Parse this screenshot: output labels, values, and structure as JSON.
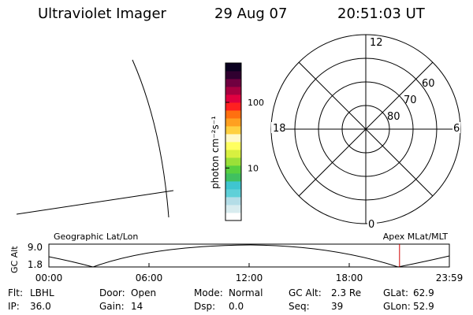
{
  "header": {
    "title": "Ultraviolet Imager",
    "date": "29 Aug 07",
    "time": "20:51:03 UT"
  },
  "colorbar": {
    "unit_label": "photon cm⁻²s⁻¹",
    "ticks": [
      {
        "label": "100",
        "value": 100
      },
      {
        "label": "10",
        "value": 10
      }
    ],
    "colors": [
      "#ffffff",
      "#d8ecef",
      "#b4dde7",
      "#5fd0d8",
      "#3fc5d0",
      "#40c060",
      "#58d040",
      "#9be038",
      "#d8f040",
      "#ffff60",
      "#fff8c8",
      "#ffd040",
      "#ffa020",
      "#ff7010",
      "#ff2020",
      "#e00040",
      "#a80040",
      "#700040",
      "#300030",
      "#0a0020"
    ]
  },
  "polar_plot": {
    "labels": {
      "top": "12",
      "left": "18",
      "right": "6",
      "bottom": "0"
    },
    "latitude_labels": [
      "60",
      "70",
      "80"
    ]
  },
  "orbit": {
    "y_axis_label": "GC Alt",
    "y_ticks": [
      "9.0",
      "1.8"
    ],
    "left_caption": "Geographic Lat/Lon",
    "right_caption": "Apex MLat/MLT",
    "x_ticks": [
      "00:00",
      "06:00",
      "12:00",
      "18:00",
      "23:59"
    ],
    "current_time_fraction": 0.8756,
    "marker_color": "#d00000"
  },
  "info_rows": [
    [
      {
        "label": "Flt:",
        "value": "LBHL"
      },
      {
        "label": "Door:",
        "value": "Open"
      },
      {
        "label": "Mode:",
        "value": "Normal"
      },
      {
        "label": "GC Alt:",
        "value": "2.3 Re"
      },
      {
        "label": "GLat:",
        "value": "62.9"
      }
    ],
    [
      {
        "label": "IP:",
        "value": "36.0"
      },
      {
        "label": "Gain:",
        "value": "14"
      },
      {
        "label": "Dsp:",
        "value": "0.0"
      },
      {
        "label": "Seq:",
        "value": "39"
      },
      {
        "label": "GLon:",
        "value": "52.9"
      }
    ]
  ]
}
